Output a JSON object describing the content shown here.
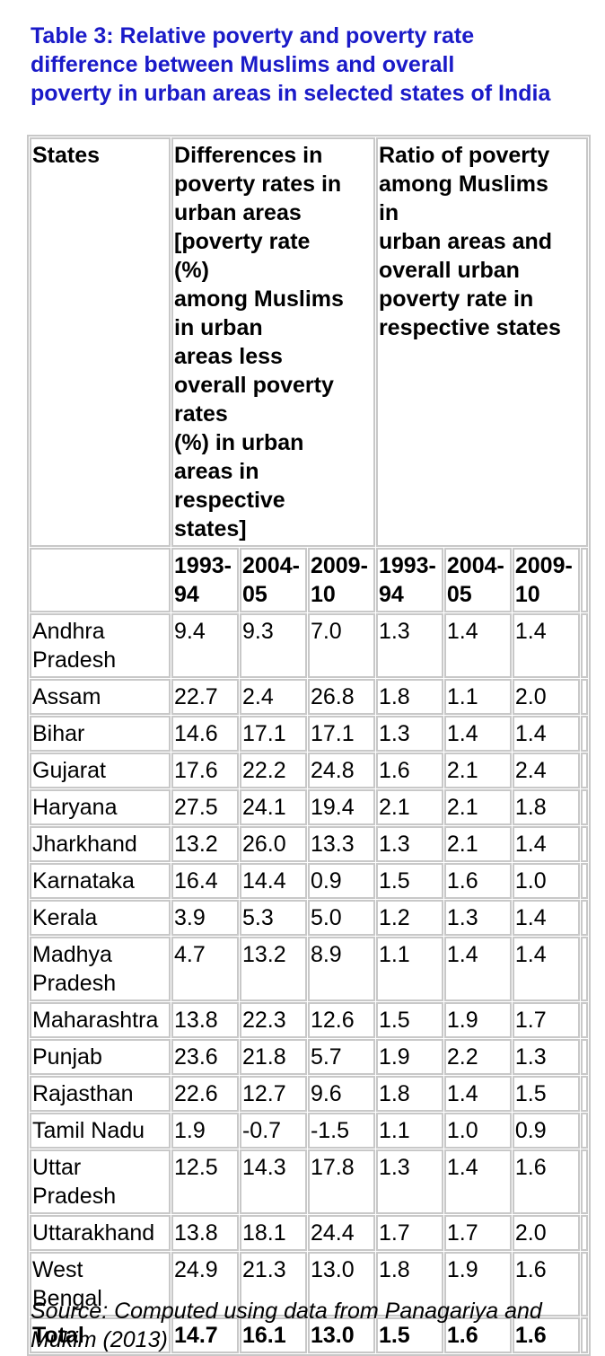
{
  "title_lines": [
    "Table 3: Relative poverty and poverty rate",
    "difference between Muslims and overall",
    "poverty in urban areas in selected states of India"
  ],
  "table": {
    "col_states": "States",
    "col_diff": "Differences in\npoverty rates in\nurban areas\n[poverty rate\n(%)\namong Muslims\nin urban\nareas less\noverall poverty\nrates\n(%) in urban\nareas in\nrespective\nstates]",
    "col_ratio": "Ratio of poverty\namong Muslims\nin\nurban areas and\noverall urban\npoverty rate in\nrespective states",
    "years": [
      "1993-\n94",
      "2004-\n05",
      "2009-\n10",
      "1993-\n94",
      "2004-\n05",
      "2009-\n10"
    ],
    "rows": [
      {
        "state": "Andhra\nPradesh",
        "values": [
          "9.4",
          "9.3",
          "7.0",
          "1.3",
          "1.4",
          "1.4"
        ]
      },
      {
        "state": "Assam",
        "values": [
          "22.7",
          "2.4",
          "26.8",
          "1.8",
          "1.1",
          "2.0"
        ]
      },
      {
        "state": "Bihar",
        "values": [
          "14.6",
          "17.1",
          "17.1",
          "1.3",
          "1.4",
          "1.4"
        ]
      },
      {
        "state": "Gujarat",
        "values": [
          "17.6",
          "22.2",
          "24.8",
          "1.6",
          "2.1",
          "2.4"
        ]
      },
      {
        "state": "Haryana",
        "values": [
          "27.5",
          "24.1",
          "19.4",
          "2.1",
          "2.1",
          "1.8"
        ]
      },
      {
        "state": "Jharkhand",
        "values": [
          "13.2",
          "26.0",
          "13.3",
          "1.3",
          "2.1",
          "1.4"
        ]
      },
      {
        "state": "Karnataka",
        "values": [
          "16.4",
          "14.4",
          "0.9",
          "1.5",
          "1.6",
          "1.0"
        ]
      },
      {
        "state": "Kerala",
        "values": [
          "3.9",
          "5.3",
          "5.0",
          "1.2",
          "1.3",
          "1.4"
        ]
      },
      {
        "state": "Madhya\nPradesh",
        "values": [
          "4.7",
          "13.2",
          "8.9",
          "1.1",
          "1.4",
          "1.4"
        ]
      },
      {
        "state": "Maharashtra",
        "values": [
          "13.8",
          "22.3",
          "12.6",
          "1.5",
          "1.9",
          "1.7"
        ]
      },
      {
        "state": "Punjab",
        "values": [
          "23.6",
          "21.8",
          "5.7",
          "1.9",
          "2.2",
          "1.3"
        ]
      },
      {
        "state": "Rajasthan",
        "values": [
          "22.6",
          "12.7",
          "9.6",
          "1.8",
          "1.4",
          "1.5"
        ]
      },
      {
        "state": "Tamil Nadu",
        "values": [
          "1.9",
          "-0.7",
          "-1.5",
          "1.1",
          "1.0",
          "0.9"
        ]
      },
      {
        "state": "Uttar\nPradesh",
        "values": [
          "12.5",
          "14.3",
          "17.8",
          "1.3",
          "1.4",
          "1.6"
        ]
      },
      {
        "state": "Uttarakhand",
        "values": [
          "13.8",
          "18.1",
          "24.4",
          "1.7",
          "1.7",
          "2.0"
        ]
      },
      {
        "state": "West\nBengal",
        "values": [
          "24.9",
          "21.3",
          "13.0",
          "1.8",
          "1.9",
          "1.6"
        ]
      }
    ],
    "total": {
      "state": "Total",
      "values": [
        "14.7",
        "16.1",
        "13.0",
        "1.5",
        "1.6",
        "1.6"
      ]
    }
  },
  "source_text": "Source: Computed using data from Panagariya and Mukim (2013)",
  "colors": {
    "title": "#1a1ac8",
    "border": "#c8c8c8"
  }
}
